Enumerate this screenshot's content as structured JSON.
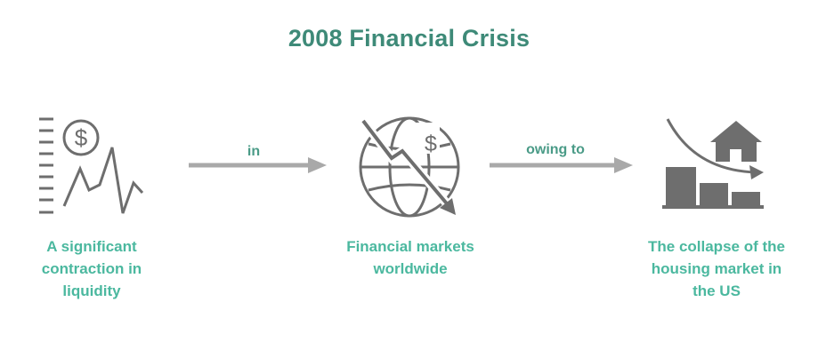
{
  "title": "2008 Financial Crisis",
  "colors": {
    "title": "#3e8a78",
    "node_label": "#4bb89f",
    "connector_label": "#4a9b87",
    "icon": "#6e6e6e",
    "arrow": "#a9a9a9"
  },
  "nodes": [
    {
      "icon": "liquidity-chart-icon",
      "label_lines": [
        "A significant",
        "contraction in",
        "liquidity"
      ]
    },
    {
      "icon": "globe-market-decline-icon",
      "label_lines": [
        "Financial markets",
        "worldwide"
      ]
    },
    {
      "icon": "housing-market-collapse-icon",
      "label_lines": [
        "The collapse of the",
        "housing market in",
        "the US"
      ]
    }
  ],
  "connectors": [
    {
      "label": "in"
    },
    {
      "label": "owing to"
    }
  ]
}
